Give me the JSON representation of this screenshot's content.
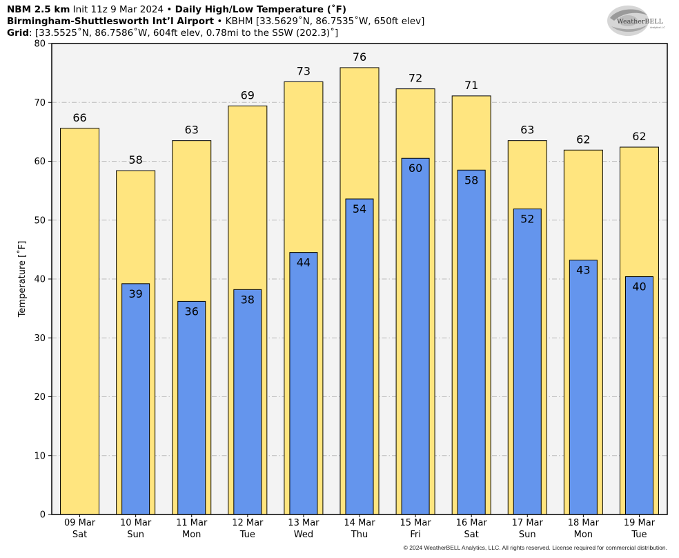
{
  "header": {
    "line1_bold_a": "NBM 2.5 km",
    "line1_plain": " Init 11z 9 Mar 2024 • ",
    "line1_bold_b": "Daily High/Low Temperature (˚F)",
    "line2_bold": "Birmingham-Shuttlesworth Int’l Airport",
    "line2_plain": " • KBHM [33.5629˚N, 86.7535˚W, 650ft elev]",
    "line3_bold": "Grid",
    "line3_plain": ": [33.5525˚N, 86.7586˚W, 604ft elev, 0.78mi to the SSW (202.3)˚]"
  },
  "logo": {
    "text": "WeatherBELL",
    "sub": "Analytics LLC"
  },
  "copyright": "© 2024 WeatherBELL Analytics, LLC. All rights reserved. License required for commercial distribution.",
  "colors": {
    "high": "#ffe57f",
    "low": "#6495ed",
    "plot_bg": "#f3f3f3",
    "outline": "#000000",
    "grid": "#bbbbbb"
  },
  "chart_data": {
    "type": "bar",
    "ylabel": "Temperature [˚F]",
    "ylim": [
      0,
      80
    ],
    "yticks": [
      0,
      10,
      20,
      30,
      40,
      50,
      60,
      70,
      80
    ],
    "grid": true,
    "categories": [
      {
        "date": "09 Mar",
        "day": "Sat"
      },
      {
        "date": "10 Mar",
        "day": "Sun"
      },
      {
        "date": "11 Mar",
        "day": "Mon"
      },
      {
        "date": "12 Mar",
        "day": "Tue"
      },
      {
        "date": "13 Mar",
        "day": "Wed"
      },
      {
        "date": "14 Mar",
        "day": "Thu"
      },
      {
        "date": "15 Mar",
        "day": "Fri"
      },
      {
        "date": "16 Mar",
        "day": "Sat"
      },
      {
        "date": "17 Mar",
        "day": "Sun"
      },
      {
        "date": "18 Mar",
        "day": "Mon"
      },
      {
        "date": "19 Mar",
        "day": "Tue"
      }
    ],
    "series": [
      {
        "key": "high",
        "values": [
          65.6,
          58.4,
          63.5,
          69.4,
          73.5,
          75.9,
          72.3,
          71.1,
          63.5,
          61.9,
          62.4
        ],
        "labels": [
          "66",
          "58",
          "63",
          "69",
          "73",
          "76",
          "72",
          "71",
          "63",
          "62",
          "62"
        ]
      },
      {
        "key": "low",
        "values": [
          null,
          39.2,
          36.2,
          38.2,
          44.5,
          53.6,
          60.5,
          58.5,
          51.9,
          43.2,
          40.4
        ],
        "labels": [
          "",
          "39",
          "36",
          "38",
          "44",
          "54",
          "60",
          "58",
          "52",
          "43",
          "40"
        ]
      }
    ]
  }
}
